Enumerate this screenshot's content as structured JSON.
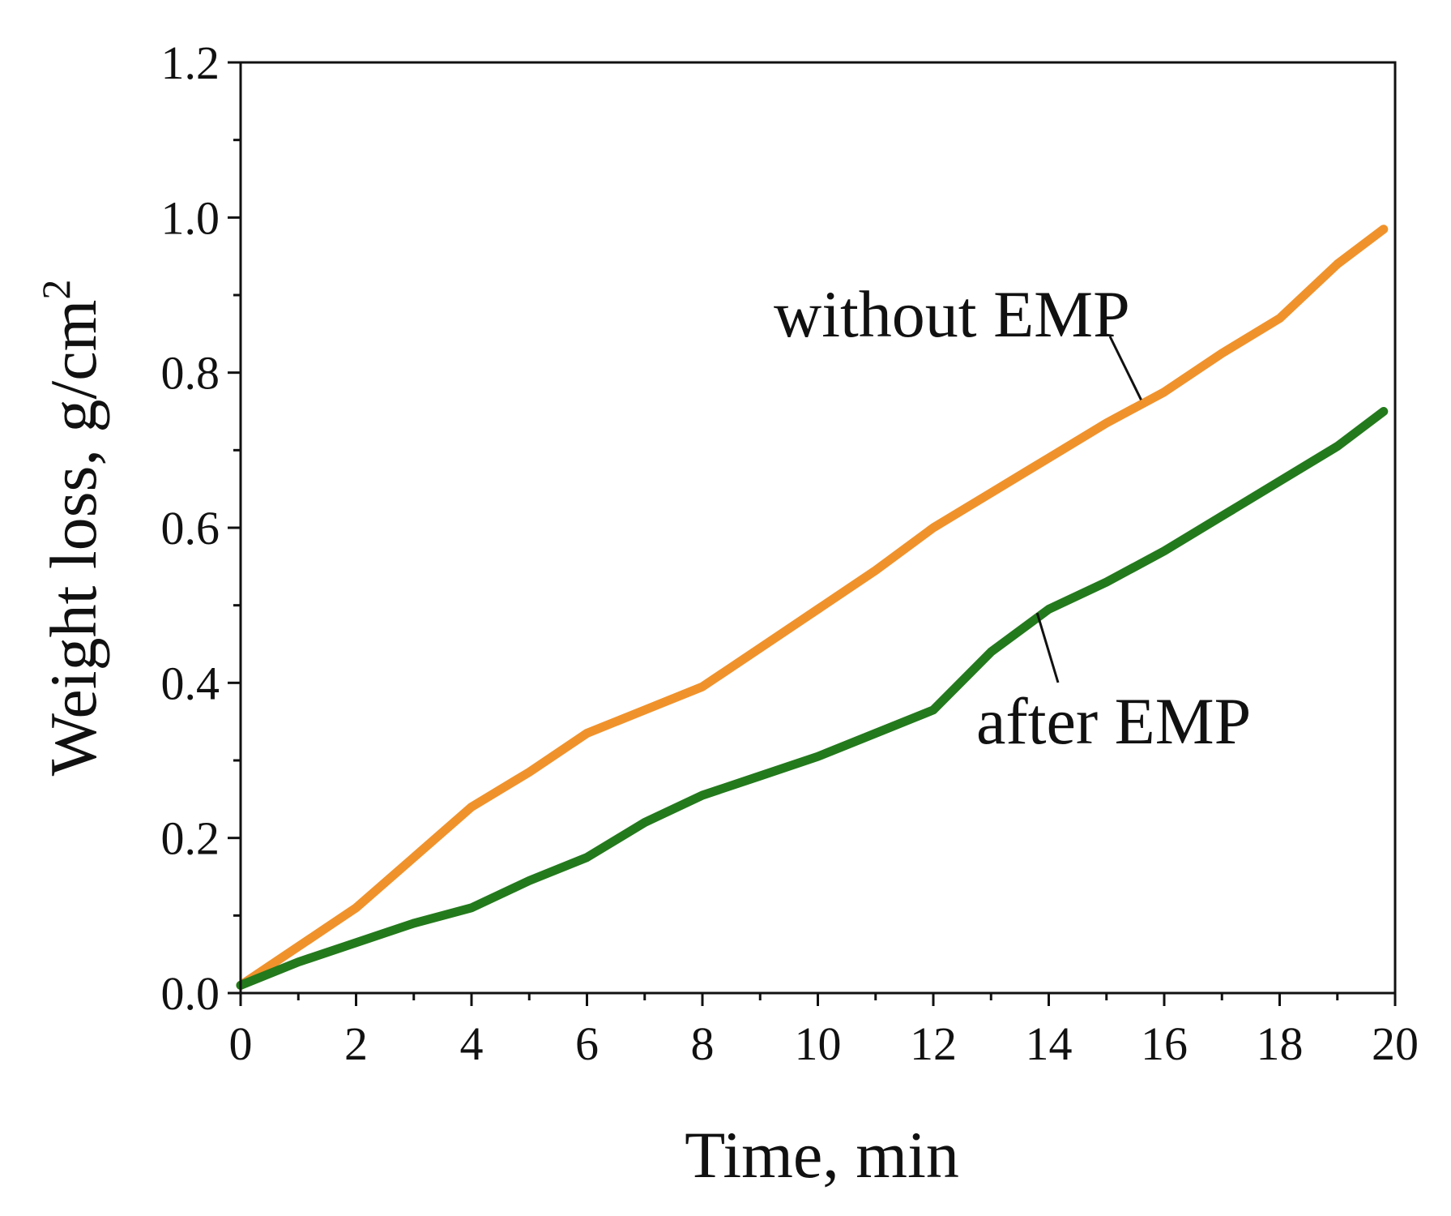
{
  "chart_data": {
    "type": "line",
    "xlabel": "Time, min",
    "ylabel": "Weight loss, g/cm",
    "ylabel_superscript": "2",
    "xlim": [
      0,
      20
    ],
    "ylim": [
      0,
      1.2
    ],
    "x_ticks": [
      "0",
      "2",
      "4",
      "6",
      "8",
      "10",
      "12",
      "14",
      "16",
      "18",
      "20"
    ],
    "y_ticks": [
      "0.0",
      "0.2",
      "0.4",
      "0.6",
      "0.8",
      "1.0",
      "1.2"
    ],
    "x_tick_values": [
      0,
      2,
      4,
      6,
      8,
      10,
      12,
      14,
      16,
      18,
      20
    ],
    "y_tick_values": [
      0,
      0.2,
      0.4,
      0.6,
      0.8,
      1.0,
      1.2
    ],
    "grid": false,
    "legend": "none",
    "series": [
      {
        "name": "without EMP",
        "color": "#F0922B",
        "points": [
          [
            0,
            0.01
          ],
          [
            1,
            0.06
          ],
          [
            2,
            0.11
          ],
          [
            3,
            0.175
          ],
          [
            4,
            0.24
          ],
          [
            5,
            0.285
          ],
          [
            6,
            0.335
          ],
          [
            7,
            0.365
          ],
          [
            8,
            0.395
          ],
          [
            9,
            0.445
          ],
          [
            10,
            0.495
          ],
          [
            11,
            0.545
          ],
          [
            12,
            0.6
          ],
          [
            13,
            0.645
          ],
          [
            14,
            0.69
          ],
          [
            15,
            0.735
          ],
          [
            16,
            0.775
          ],
          [
            17,
            0.825
          ],
          [
            18,
            0.87
          ],
          [
            19,
            0.94
          ],
          [
            19.8,
            0.985
          ]
        ]
      },
      {
        "name": "after EMP",
        "color": "#237A1C",
        "points": [
          [
            0,
            0.01
          ],
          [
            1,
            0.04
          ],
          [
            2,
            0.065
          ],
          [
            3,
            0.09
          ],
          [
            4,
            0.11
          ],
          [
            5,
            0.145
          ],
          [
            6,
            0.175
          ],
          [
            7,
            0.22
          ],
          [
            8,
            0.255
          ],
          [
            9,
            0.28
          ],
          [
            10,
            0.305
          ],
          [
            11,
            0.335
          ],
          [
            12,
            0.365
          ],
          [
            13,
            0.44
          ],
          [
            14,
            0.495
          ],
          [
            15,
            0.53
          ],
          [
            16,
            0.57
          ],
          [
            17,
            0.615
          ],
          [
            18,
            0.66
          ],
          [
            19,
            0.705
          ],
          [
            19.8,
            0.75
          ]
        ]
      }
    ],
    "annotations": [
      {
        "text": "without EMP",
        "series": 0,
        "point_x": 15.6,
        "point_y": 0.765
      },
      {
        "text": "after EMP",
        "series": 1,
        "point_x": 13.8,
        "point_y": 0.49
      }
    ]
  }
}
